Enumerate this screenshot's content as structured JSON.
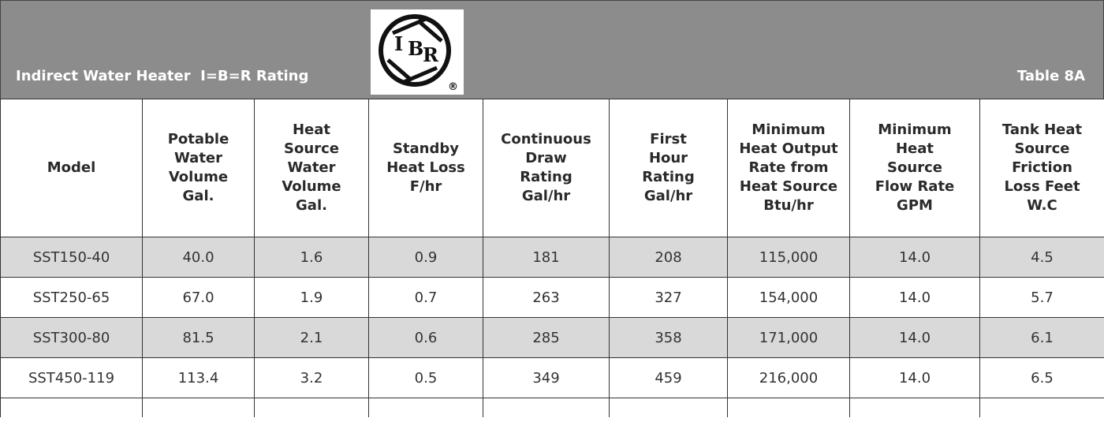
{
  "header": {
    "title": "Indirect Water Heater  I=B=R Rating",
    "table_label": "Table 8A",
    "logo": {
      "letters": [
        "I",
        "B",
        "R"
      ],
      "mark": "®"
    }
  },
  "table": {
    "columns": [
      "Model",
      "Potable\nWater\nVolume\nGal.",
      "Heat\nSource\nWater\nVolume\nGal.",
      "Standby\nHeat Loss\nF/hr",
      "Continuous\nDraw\nRating\nGal/hr",
      "First\nHour\nRating\nGal/hr",
      "Minimum\nHeat Output\nRate from\nHeat Source\nBtu/hr",
      "Minimum\nHeat\nSource\nFlow Rate\nGPM",
      "Tank Heat\nSource\nFriction\nLoss Feet\nW.C"
    ],
    "rows": [
      [
        "SST150-40",
        "40.0",
        "1.6",
        "0.9",
        "181",
        "208",
        "115,000",
        "14.0",
        "4.5"
      ],
      [
        "SST250-65",
        "67.0",
        "1.9",
        "0.7",
        "263",
        "327",
        "154,000",
        "14.0",
        "5.7"
      ],
      [
        "SST300-80",
        "81.5",
        "2.1",
        "0.6",
        "285",
        "358",
        "171,000",
        "14.0",
        "6.1"
      ],
      [
        "SST450-119",
        "113.4",
        "3.2",
        "0.5",
        "349",
        "459",
        "216,000",
        "14.0",
        "6.5"
      ]
    ]
  }
}
